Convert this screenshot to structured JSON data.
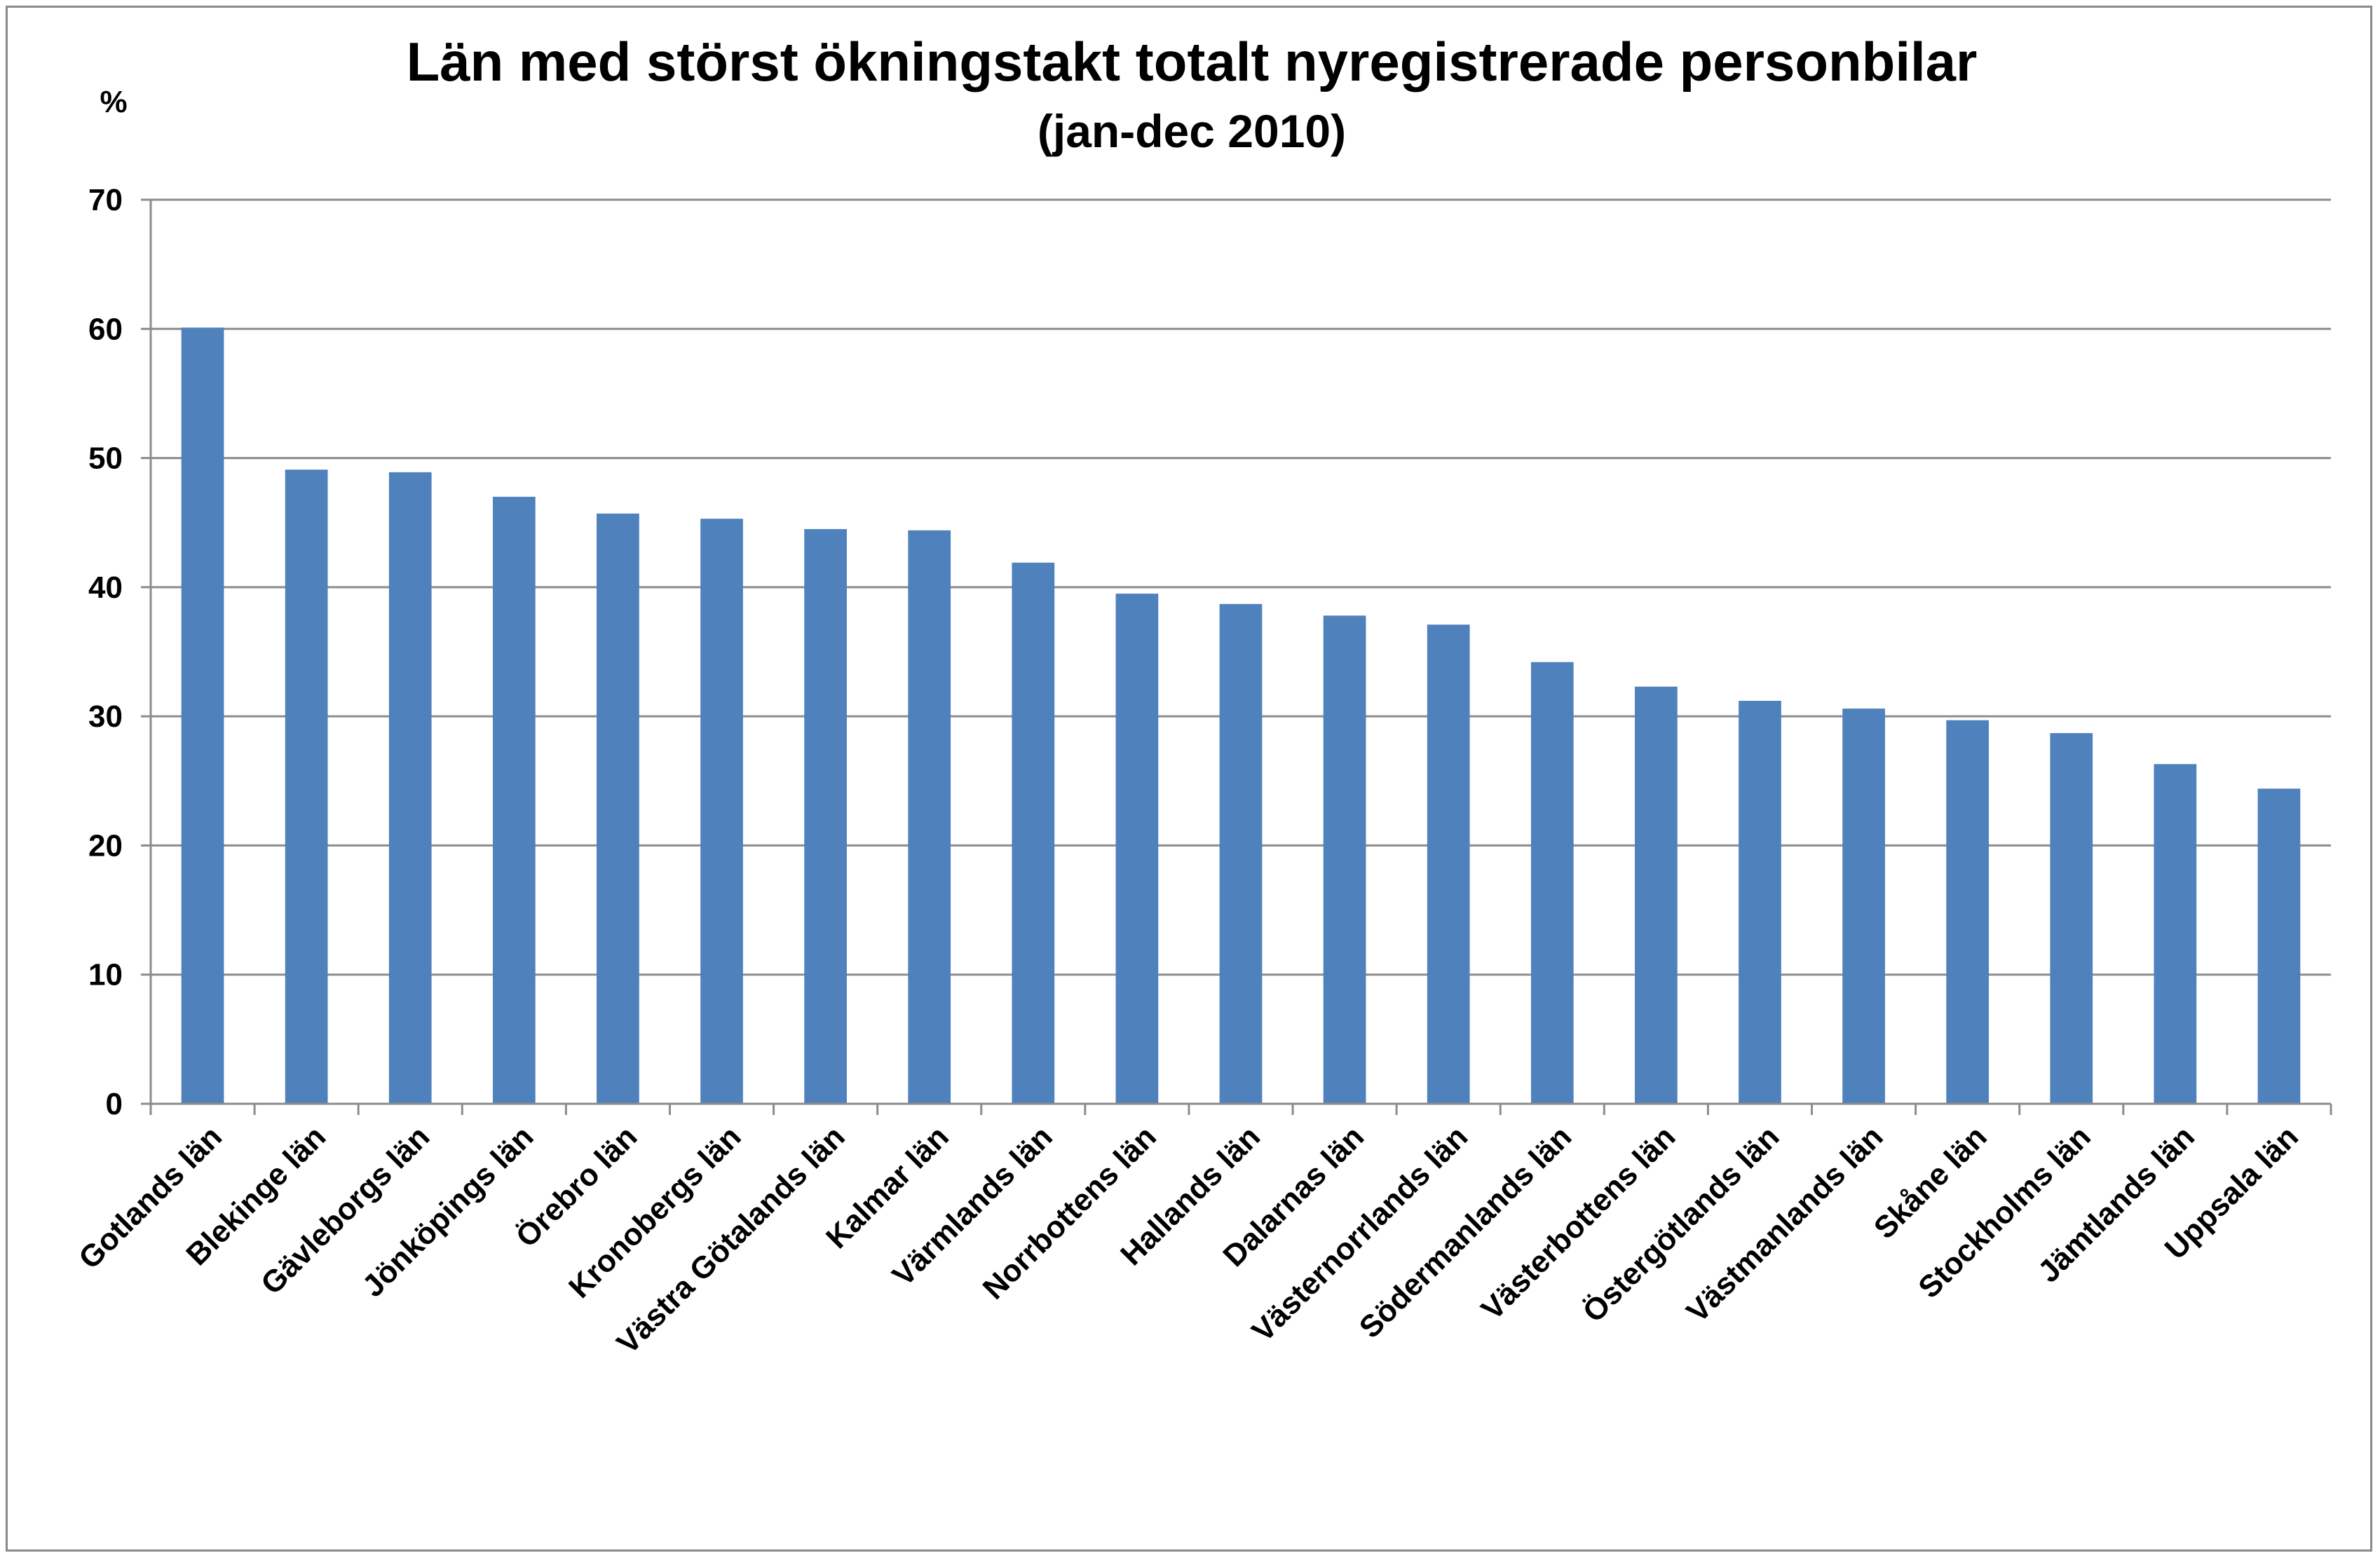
{
  "chart_data": {
    "type": "bar",
    "title": "Län med störst ökningstakt totalt nyregistrerade personbilar",
    "subtitle": "(jan-dec 2010)",
    "ylabel": "%",
    "xlabel": "",
    "ylim": [
      0,
      70
    ],
    "yticks": [
      0,
      10,
      20,
      30,
      40,
      50,
      60,
      70
    ],
    "grid": true,
    "legend": "none",
    "bar_color": "#4f81bd",
    "grid_color": "#8c8c8c",
    "categories": [
      "Gotlands län",
      "Blekinge län",
      "Gävleborgs län",
      "Jönköpings län",
      "Örebro län",
      "Kronobergs län",
      "Västra Götalands län",
      "Kalmar län",
      "Värmlands län",
      "Norrbottens län",
      "Hallands län",
      "Dalarnas län",
      "Västernorrlands län",
      "Södermanlands län",
      "Västerbottens län",
      "Östergötlands län",
      "Västmanlands län",
      "Skåne län",
      "Stockholms län",
      "Jämtlands län",
      "Uppsala län"
    ],
    "values": [
      60.1,
      49.1,
      48.9,
      47.0,
      45.7,
      45.3,
      44.5,
      44.4,
      41.9,
      39.5,
      38.7,
      37.8,
      37.1,
      34.2,
      32.3,
      31.2,
      30.6,
      29.7,
      28.7,
      26.3,
      24.4
    ]
  }
}
